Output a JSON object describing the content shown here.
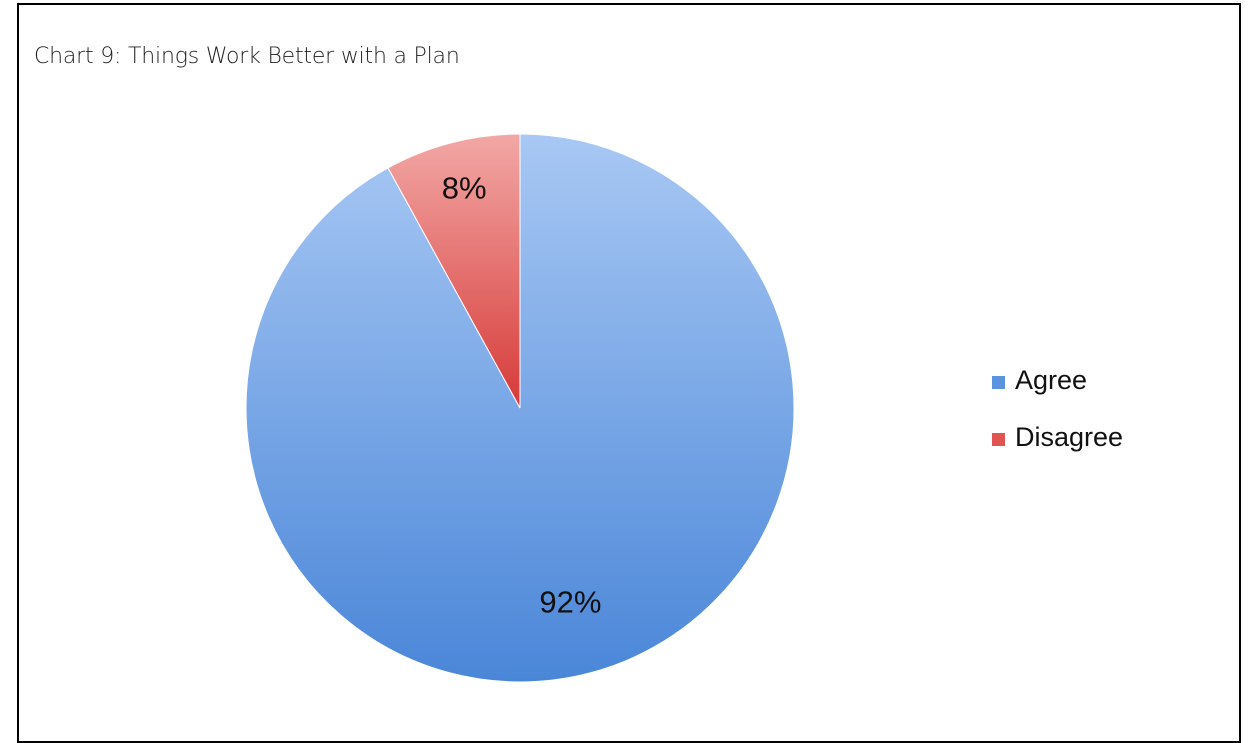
{
  "chart_data": {
    "type": "pie",
    "title": "Chart 9: Things Work Better with a Plan",
    "categories": [
      "Agree",
      "Disagree"
    ],
    "values": [
      92,
      8
    ],
    "data_labels": [
      "92%",
      "8%"
    ],
    "colors": {
      "Agree": {
        "light": "#a8c8f4",
        "dark": "#4a86d8",
        "legend": "#5b93de"
      },
      "Disagree": {
        "light": "#f2a8a6",
        "dark": "#d63a38",
        "legend": "#e05552"
      }
    },
    "legend_placement": "right",
    "start_angle": "12 o'clock",
    "direction": "clockwise"
  }
}
